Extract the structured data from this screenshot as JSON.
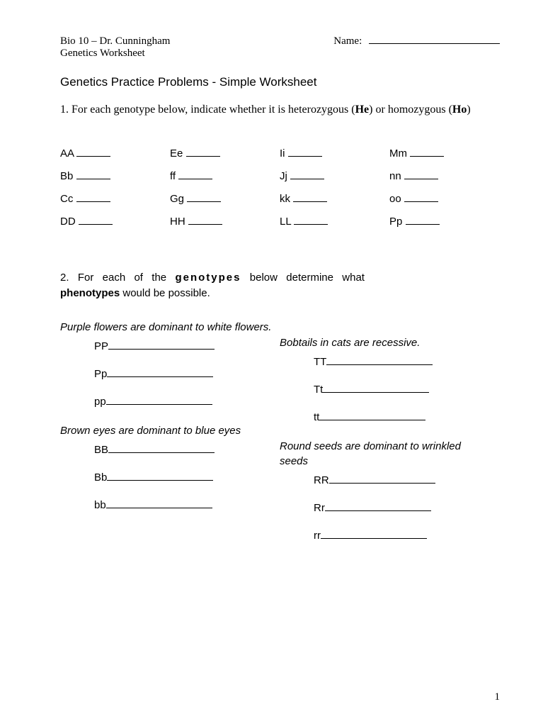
{
  "header": {
    "course": "Bio 10 – Dr. Cunningham",
    "subtitle": "Genetics Worksheet",
    "name_label": "Name:"
  },
  "title": "Genetics Practice Problems - Simple Worksheet",
  "q1": {
    "prefix": "1. For each genotype below, indicate whether it is heterozygous (",
    "he": "He",
    "mid": ") or homozygous (",
    "ho": "Ho",
    "suffix": ")"
  },
  "genotypes": {
    "rows": [
      [
        "AA",
        "Ee",
        "Ii",
        "Mm"
      ],
      [
        "Bb",
        "ff",
        "Jj",
        "nn"
      ],
      [
        "Cc",
        "Gg",
        "kk",
        "oo"
      ],
      [
        "DD",
        "HH",
        "LL",
        "Pp"
      ]
    ],
    "blank_width": 48
  },
  "q2": {
    "prefix": "2. For each of the ",
    "genotypes": "genotypes",
    "mid": " below determine what ",
    "phenotypes": "phenotypes",
    "suffix": " would be possible."
  },
  "pheno": {
    "left": [
      {
        "desc": "Purple flowers are dominant to white flowers.",
        "items": [
          "PP",
          "Pp",
          "pp"
        ]
      },
      {
        "desc": "Brown eyes are dominant to blue eyes",
        "items": [
          "BB",
          "Bb",
          "bb"
        ]
      }
    ],
    "right": [
      {
        "desc": "Bobtails in cats are recessive.",
        "items": [
          "TT",
          "Tt",
          "tt"
        ]
      },
      {
        "desc": "Round seeds are dominant to wrinkled seeds",
        "items": [
          "RR",
          "Rr",
          "rr"
        ]
      }
    ],
    "blank_width": 150
  },
  "page_number": "1"
}
